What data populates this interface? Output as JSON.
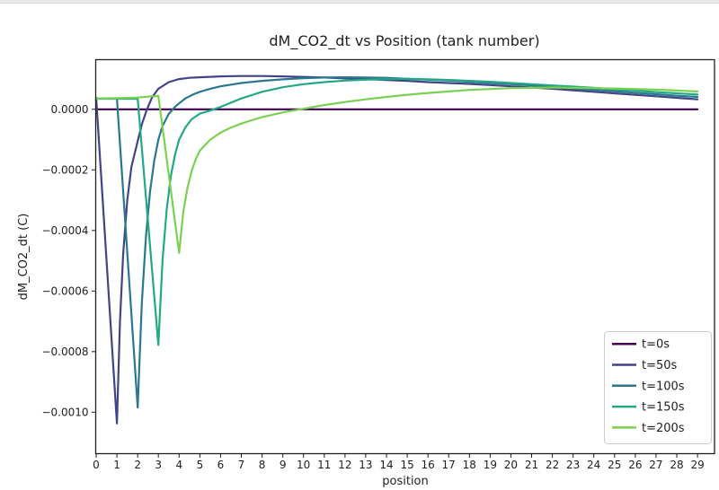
{
  "window": {
    "background": "#ffffff",
    "top_edge_color": "#e9e9ec"
  },
  "chart_data": {
    "type": "line",
    "title": "dM_CO2_dt vs Position (tank number)",
    "xlabel": "position",
    "ylabel": "dM_CO2_dt (C)",
    "grid": false,
    "xlim": [
      -0.022,
      29.82
    ],
    "ylim": [
      -0.001137,
      0.000164
    ],
    "x_ticks": [
      0,
      1,
      2,
      3,
      4,
      5,
      6,
      7,
      8,
      9,
      10,
      11,
      12,
      13,
      14,
      15,
      16,
      17,
      18,
      19,
      20,
      21,
      22,
      23,
      24,
      25,
      26,
      27,
      28,
      29
    ],
    "y_ticks": [
      {
        "value": 0.0,
        "label": "0.0000"
      },
      {
        "value": -0.0002,
        "label": "−0.0002"
      },
      {
        "value": -0.0004,
        "label": "−0.0004"
      },
      {
        "value": -0.0006,
        "label": "−0.0006"
      },
      {
        "value": -0.0008,
        "label": "−0.0008"
      },
      {
        "value": -0.001,
        "label": "−0.0010"
      }
    ],
    "axis_color": "#1f1f1f",
    "legend": {
      "position": "lower right",
      "border_color": "#cccccc",
      "background": "#ffffff",
      "entries": [
        "t=0s",
        "t=50s",
        "t=100s",
        "t=150s",
        "t=200s"
      ]
    },
    "series": [
      {
        "name": "t=0s",
        "color": "#440154",
        "points": [
          [
            0,
            0.0
          ],
          [
            29,
            0.0
          ]
        ]
      },
      {
        "name": "t=50s",
        "color": "#414487",
        "points": [
          [
            0,
            3.8e-05
          ],
          [
            1,
            -0.001037
          ],
          [
            1.15,
            -0.0007
          ],
          [
            1.3,
            -0.00048
          ],
          [
            1.5,
            -0.0003
          ],
          [
            1.7,
            -0.00019
          ],
          [
            2,
            -0.000105
          ],
          [
            2.2,
            -5e-05
          ],
          [
            2.45,
            0.0
          ],
          [
            2.7,
            4e-05
          ],
          [
            3,
            6.8e-05
          ],
          [
            3.5,
            9e-05
          ],
          [
            4,
            0.0001
          ],
          [
            4.5,
            0.000104
          ],
          [
            5,
            0.000106
          ],
          [
            6,
            0.000109
          ],
          [
            7,
            0.00011
          ],
          [
            8,
            0.00011
          ],
          [
            9,
            0.000109
          ],
          [
            10,
            0.000107
          ],
          [
            11,
            0.000105
          ],
          [
            12,
            0.000102
          ],
          [
            13,
            0.0001
          ],
          [
            14,
            9.7e-05
          ],
          [
            15,
            9.4e-05
          ],
          [
            16,
            9e-05
          ],
          [
            17,
            8.7e-05
          ],
          [
            18,
            8.4e-05
          ],
          [
            19,
            8e-05
          ],
          [
            20,
            7.6e-05
          ],
          [
            21,
            7.2e-05
          ],
          [
            22,
            6.8e-05
          ],
          [
            23,
            6.3e-05
          ],
          [
            24,
            5.8e-05
          ],
          [
            25,
            5.3e-05
          ],
          [
            26,
            4.8e-05
          ],
          [
            27,
            4.3e-05
          ],
          [
            28,
            3.8e-05
          ],
          [
            29,
            3.3e-05
          ]
        ]
      },
      {
        "name": "t=100s",
        "color": "#2a788e",
        "points": [
          [
            0,
            3.6e-05
          ],
          [
            1,
            3.6e-05
          ],
          [
            2,
            -0.000985
          ],
          [
            2.2,
            -0.00064
          ],
          [
            2.4,
            -0.00042
          ],
          [
            2.6,
            -0.00027
          ],
          [
            2.8,
            -0.00017
          ],
          [
            3,
            -0.0001
          ],
          [
            3.2,
            -5.5e-05
          ],
          [
            3.5,
            -1.5e-05
          ],
          [
            3.8,
            8e-06
          ],
          [
            4,
            2e-05
          ],
          [
            4.3,
            3.6e-05
          ],
          [
            4.7,
            5e-05
          ],
          [
            5,
            5.8e-05
          ],
          [
            5.5,
            6.8e-05
          ],
          [
            6,
            7.6e-05
          ],
          [
            7,
            8.7e-05
          ],
          [
            8,
            9.4e-05
          ],
          [
            9,
            9.9e-05
          ],
          [
            10,
            0.000103
          ],
          [
            11,
            0.000105
          ],
          [
            12,
            0.000106
          ],
          [
            13,
            0.000105
          ],
          [
            14,
            0.000104
          ],
          [
            15,
            0.000101
          ],
          [
            16,
            9.8e-05
          ],
          [
            17,
            9.5e-05
          ],
          [
            18,
            9.1e-05
          ],
          [
            19,
            8.7e-05
          ],
          [
            20,
            8.3e-05
          ],
          [
            21,
            7.9e-05
          ],
          [
            22,
            7.4e-05
          ],
          [
            23,
            6.9e-05
          ],
          [
            24,
            6.4e-05
          ],
          [
            25,
            6e-05
          ],
          [
            26,
            5.5e-05
          ],
          [
            27,
            5e-05
          ],
          [
            28,
            4.5e-05
          ],
          [
            29,
            4.1e-05
          ]
        ]
      },
      {
        "name": "t=150s",
        "color": "#22a884",
        "points": [
          [
            0,
            3.5e-05
          ],
          [
            1,
            3.5e-05
          ],
          [
            2,
            3.5e-05
          ],
          [
            3,
            -0.000778
          ],
          [
            3.2,
            -0.0005
          ],
          [
            3.4,
            -0.00033
          ],
          [
            3.6,
            -0.00022
          ],
          [
            3.8,
            -0.00015
          ],
          [
            4,
            -0.0001
          ],
          [
            4.3,
            -6e-05
          ],
          [
            4.6,
            -3.3e-05
          ],
          [
            5,
            -1.4e-05
          ],
          [
            5.5,
            -4e-06
          ],
          [
            6,
            8e-06
          ],
          [
            6.5,
            2.2e-05
          ],
          [
            7,
            3.6e-05
          ],
          [
            7.5,
            4.7e-05
          ],
          [
            8,
            5.8e-05
          ],
          [
            9,
            7.3e-05
          ],
          [
            10,
            8.3e-05
          ],
          [
            11,
            9e-05
          ],
          [
            12,
            9.5e-05
          ],
          [
            13,
            9.8e-05
          ],
          [
            14,
            0.0001
          ],
          [
            15,
            0.000101
          ],
          [
            16,
            9.9e-05
          ],
          [
            17,
            9.7e-05
          ],
          [
            18,
            9.4e-05
          ],
          [
            19,
            9.1e-05
          ],
          [
            20,
            8.7e-05
          ],
          [
            21,
            8.3e-05
          ],
          [
            22,
            7.9e-05
          ],
          [
            23,
            7.5e-05
          ],
          [
            24,
            7.1e-05
          ],
          [
            25,
            6.6e-05
          ],
          [
            26,
            6.2e-05
          ],
          [
            27,
            5.7e-05
          ],
          [
            28,
            5.3e-05
          ],
          [
            29,
            4.9e-05
          ]
        ]
      },
      {
        "name": "t=200s",
        "color": "#7ad151",
        "points": [
          [
            0,
            3.6e-05
          ],
          [
            1,
            3.7e-05
          ],
          [
            2,
            3.9e-05
          ],
          [
            2.7,
            4.3e-05
          ],
          [
            3,
            4.4e-05
          ],
          [
            4,
            -0.000474
          ],
          [
            4.2,
            -0.00034
          ],
          [
            4.4,
            -0.00026
          ],
          [
            4.6,
            -0.000205
          ],
          [
            4.8,
            -0.000165
          ],
          [
            5,
            -0.000136
          ],
          [
            5.5,
            -0.0001
          ],
          [
            6,
            -7.7e-05
          ],
          [
            6.5,
            -6e-05
          ],
          [
            7,
            -4.7e-05
          ],
          [
            7.5,
            -3.6e-05
          ],
          [
            8,
            -2.6e-05
          ],
          [
            8.5,
            -1.8e-05
          ],
          [
            9,
            -1e-05
          ],
          [
            9.5,
            -4e-06
          ],
          [
            10,
            2e-06
          ],
          [
            10.5,
            8e-06
          ],
          [
            11,
            1.4e-05
          ],
          [
            12,
            2.4e-05
          ],
          [
            13,
            3.3e-05
          ],
          [
            14,
            4.1e-05
          ],
          [
            15,
            4.8e-05
          ],
          [
            16,
            5.4e-05
          ],
          [
            17,
            5.9e-05
          ],
          [
            18,
            6.4e-05
          ],
          [
            19,
            6.7e-05
          ],
          [
            20,
            7e-05
          ],
          [
            21,
            7.1e-05
          ],
          [
            22,
            7.2e-05
          ],
          [
            23,
            7.1e-05
          ],
          [
            24,
            7e-05
          ],
          [
            25,
            6.9e-05
          ],
          [
            26,
            6.7e-05
          ],
          [
            27,
            6.5e-05
          ],
          [
            28,
            6.2e-05
          ],
          [
            29,
            5.9e-05
          ]
        ]
      }
    ]
  }
}
